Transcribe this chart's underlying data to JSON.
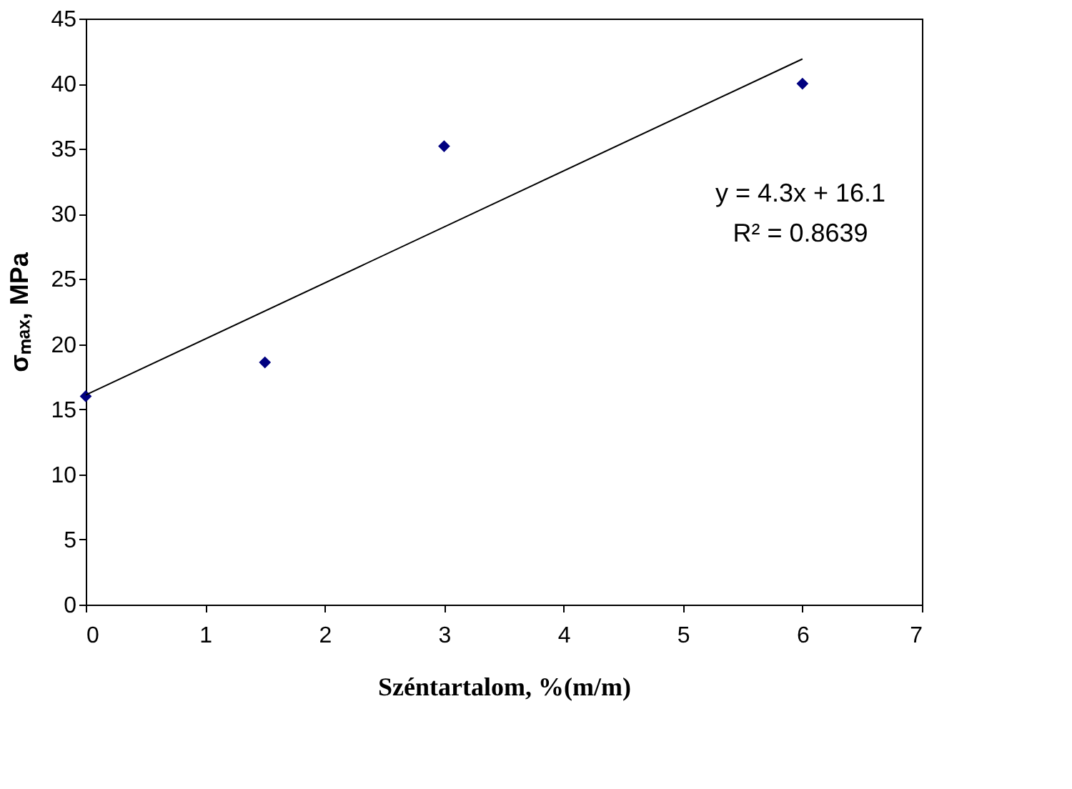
{
  "chart_data": {
    "type": "scatter",
    "xlabel": "Széntartalom, %(m/m)",
    "ylabel": "σₘₐₓ, MPa",
    "xlim": [
      0,
      7
    ],
    "xticks": [
      0,
      1,
      2,
      3,
      4,
      5,
      6,
      7
    ],
    "ylim": [
      0,
      45
    ],
    "yticks": [
      0,
      5,
      10,
      15,
      20,
      25,
      30,
      35,
      40,
      45
    ],
    "grid": false,
    "series": [
      {
        "color": "#000080",
        "marker": "diamond",
        "x": [
          0,
          1.5,
          3,
          6
        ],
        "values": [
          16,
          18.6,
          35.2,
          40
        ]
      },
      {
        "type": "line",
        "color": "#000000",
        "marker": "none",
        "x": [
          0,
          6
        ],
        "values": [
          16.1,
          41.9
        ]
      }
    ],
    "annotations": [
      "y = 4.3x + 16.1",
      "R² = 0.8639"
    ]
  }
}
